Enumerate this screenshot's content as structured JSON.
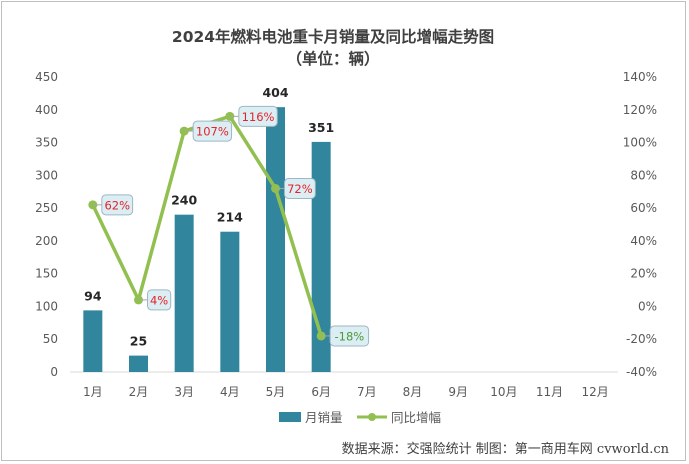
{
  "chart_data": {
    "type": "bar",
    "title": "2024年燃料电池重卡月销量及同比增幅走势图",
    "subtitle": "（单位：辆）",
    "categories": [
      "1月",
      "2月",
      "3月",
      "4月",
      "5月",
      "6月",
      "7月",
      "8月",
      "9月",
      "10月",
      "11月",
      "12月"
    ],
    "series": [
      {
        "name": "月销量",
        "type": "bar",
        "axis": "left",
        "color": "#31859c",
        "values": [
          94,
          25,
          240,
          214,
          404,
          351,
          null,
          null,
          null,
          null,
          null,
          null
        ],
        "labels": [
          "94",
          "25",
          "240",
          "214",
          "404",
          "351"
        ]
      },
      {
        "name": "同比增幅",
        "type": "line",
        "axis": "right",
        "color": "#92c050",
        "values": [
          62,
          4,
          107,
          116,
          72,
          -18,
          null,
          null,
          null,
          null,
          null,
          null
        ],
        "labels": [
          "62%",
          "4%",
          "107%",
          "116%",
          "72%",
          "-18%"
        ]
      }
    ],
    "y_left": {
      "min": 0,
      "max": 450,
      "ticks": [
        "0",
        "50",
        "100",
        "150",
        "200",
        "250",
        "300",
        "350",
        "400",
        "450"
      ]
    },
    "y_right": {
      "min": -40,
      "max": 140,
      "ticks": [
        "-40%",
        "-20%",
        "0%",
        "20%",
        "40%",
        "60%",
        "80%",
        "100%",
        "120%",
        "140%"
      ]
    },
    "grid": false,
    "legend_position": "bottom",
    "positive_label_color": "#e8212a",
    "negative_label_color": "#4e9a3a",
    "label_box_fill": "#dbeef3",
    "label_box_stroke": "#9fb7c3"
  },
  "source_note": "数据来源：交强险统计  制图：第一商用车网 cvworld.cn"
}
